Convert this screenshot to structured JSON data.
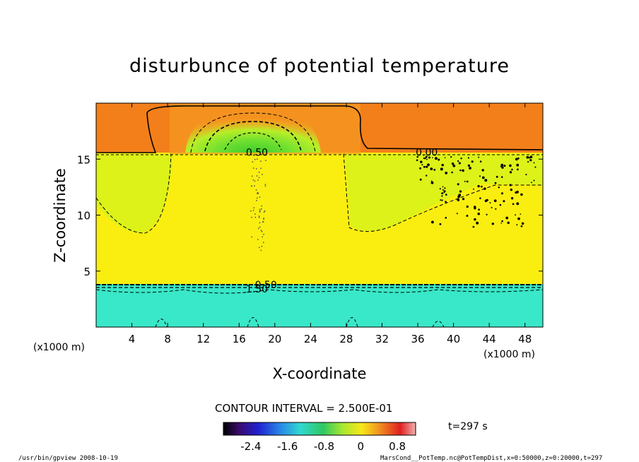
{
  "chart_data": {
    "type": "heatmap",
    "title": "disturbunce of potential temperature",
    "xlabel": "X-coordinate",
    "ylabel": "Z-coordinate",
    "x_unit": "(x1000 m)",
    "y_unit": "(x1000 m)",
    "xlim": [
      0,
      50
    ],
    "ylim": [
      0,
      20
    ],
    "x_ticks": [
      "4",
      "8",
      "12",
      "16",
      "20",
      "24",
      "28",
      "32",
      "36",
      "40",
      "44",
      "48"
    ],
    "y_ticks": [
      "5",
      "10",
      "15"
    ],
    "contour_interval": "CONTOUR INTERVAL = 2.500E-01",
    "contour_labels": [
      {
        "text": "0.50",
        "x": 18,
        "z": 15.6
      },
      {
        "text": "0.00",
        "x": 37,
        "z": 15.6
      },
      {
        "text": "0.50",
        "x": 19,
        "z": 3.8
      },
      {
        "text": "1.50",
        "x": 18,
        "z": 3.4
      }
    ],
    "colorbar": {
      "ticks": [
        "-2.4",
        "-1.6",
        "-0.8",
        "0",
        "0.8"
      ],
      "range": [
        -3.0,
        1.2
      ]
    },
    "time_label": "t=297 s",
    "footer_left": "/usr/bin/gpview   2008-10-19",
    "footer_right": "MarsCond__PotTemp.nc@PotTempDist,x=0:50000,z=0:20000,t=297",
    "colors": {
      "orange": "#f37f1a",
      "orange_light": "#f59a22",
      "yellow": "#f9ee10",
      "yellow_green": "#dcf218",
      "green": "#8ce830",
      "green_bright": "#4cd32e",
      "cyan": "#38e8c8"
    }
  }
}
